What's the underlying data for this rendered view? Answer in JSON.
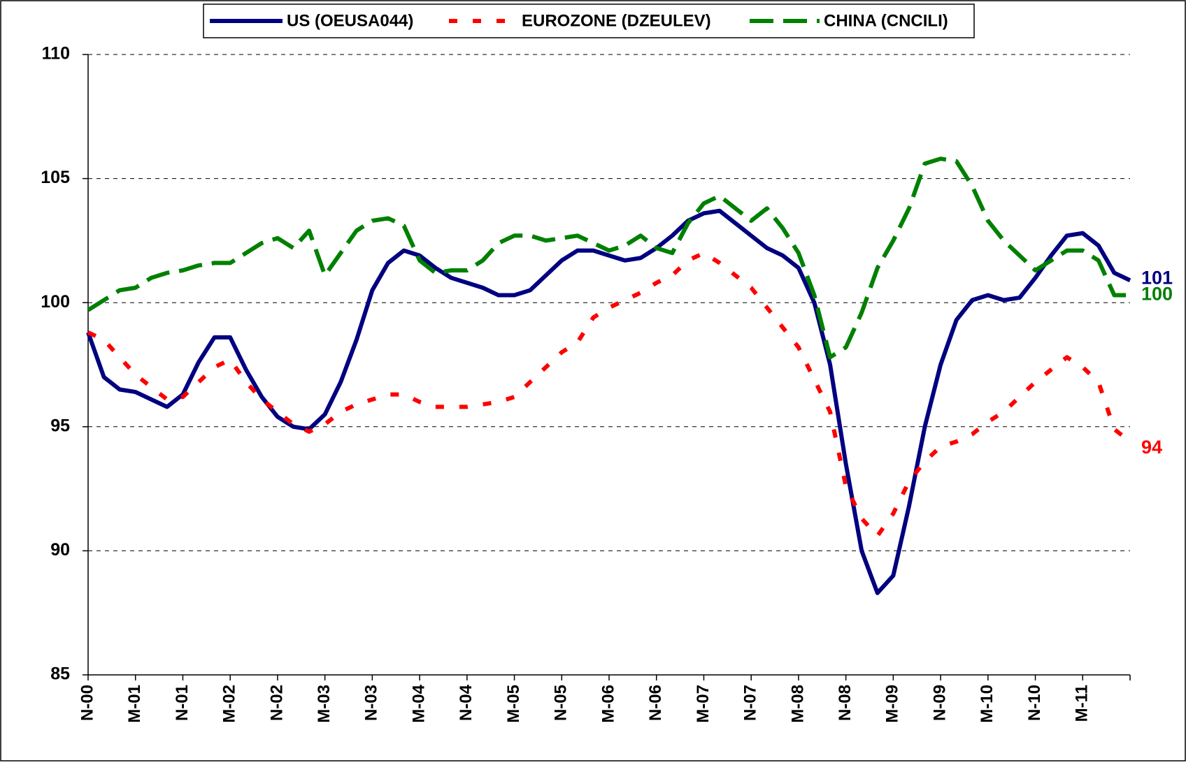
{
  "chart_data": {
    "type": "line",
    "categories": [
      "N-00",
      null,
      null,
      "M-01",
      null,
      null,
      "N-01",
      null,
      null,
      "M-02",
      null,
      null,
      "N-02",
      null,
      null,
      "M-03",
      null,
      null,
      "N-03",
      null,
      null,
      "M-04",
      null,
      null,
      "N-04",
      null,
      null,
      "M-05",
      null,
      null,
      "N-05",
      null,
      null,
      "M-06",
      null,
      null,
      "N-06",
      null,
      null,
      "M-07",
      null,
      null,
      "N-07",
      null,
      null,
      "M-08",
      null,
      null,
      "N-08",
      null,
      null,
      "M-09",
      null,
      null,
      "N-09",
      null,
      null,
      "M-10",
      null,
      null,
      "N-10",
      null,
      null,
      "M-11",
      null,
      null,
      null
    ],
    "series": [
      {
        "name": "US (OEUSA044)",
        "color": "#000080",
        "dash": "solid",
        "end_label": "101",
        "values": [
          98.8,
          97.0,
          96.5,
          96.4,
          96.1,
          95.8,
          96.3,
          97.6,
          98.6,
          98.6,
          97.3,
          96.2,
          95.4,
          95.0,
          94.9,
          95.5,
          96.8,
          98.5,
          100.5,
          101.6,
          102.1,
          101.9,
          101.4,
          101.0,
          100.8,
          100.6,
          100.3,
          100.3,
          100.5,
          101.1,
          101.7,
          102.1,
          102.1,
          101.9,
          101.7,
          101.8,
          102.2,
          102.7,
          103.3,
          103.6,
          103.7,
          103.2,
          102.7,
          102.2,
          101.9,
          101.4,
          100.0,
          97.5,
          93.5,
          90.0,
          88.3,
          89.0,
          91.8,
          95.0,
          97.5,
          99.3,
          100.1,
          100.3,
          100.1,
          100.2,
          101.0,
          101.9,
          102.7,
          102.8,
          102.3,
          101.2,
          100.9
        ]
      },
      {
        "name": "EUROZONE (DZEULEV)",
        "color": "#ff0000",
        "dash": "short",
        "end_label": "94",
        "values": [
          98.8,
          98.5,
          97.8,
          97.1,
          96.6,
          96.1,
          96.2,
          96.8,
          97.4,
          97.7,
          96.8,
          96.1,
          95.6,
          95.1,
          94.8,
          95.1,
          95.6,
          95.9,
          96.1,
          96.3,
          96.3,
          96.0,
          95.8,
          95.8,
          95.8,
          95.9,
          96.0,
          96.2,
          96.8,
          97.4,
          98.0,
          98.4,
          99.4,
          99.8,
          100.1,
          100.4,
          100.8,
          101.1,
          101.7,
          102.0,
          101.6,
          101.1,
          100.6,
          99.8,
          99.0,
          98.2,
          96.9,
          95.6,
          92.6,
          91.3,
          90.6,
          91.5,
          92.8,
          93.6,
          94.2,
          94.4,
          94.7,
          95.2,
          95.6,
          96.2,
          96.8,
          97.3,
          97.8,
          97.4,
          96.8,
          94.9,
          94.4
        ]
      },
      {
        "name": "CHINA (CNCILI)",
        "color": "#008000",
        "dash": "long",
        "end_label": "100",
        "values": [
          99.7,
          100.1,
          100.5,
          100.6,
          101.0,
          101.2,
          101.3,
          101.5,
          101.6,
          101.6,
          102.0,
          102.4,
          102.6,
          102.2,
          102.9,
          101.1,
          102.0,
          102.9,
          103.3,
          103.4,
          103.1,
          101.7,
          101.2,
          101.3,
          101.3,
          101.7,
          102.4,
          102.7,
          102.7,
          102.5,
          102.6,
          102.7,
          102.4,
          102.1,
          102.3,
          102.7,
          102.2,
          102.0,
          103.2,
          104.0,
          104.3,
          103.8,
          103.3,
          103.8,
          103.0,
          102.0,
          100.3,
          97.8,
          98.2,
          99.6,
          101.4,
          102.5,
          103.8,
          105.6,
          105.8,
          105.7,
          104.7,
          103.3,
          102.5,
          101.9,
          101.3,
          101.7,
          102.1,
          102.1,
          101.7,
          100.3,
          100.3
        ]
      }
    ],
    "ylim": [
      85,
      110
    ],
    "yticks": [
      85,
      90,
      95,
      100,
      105,
      110
    ],
    "grid": true
  }
}
